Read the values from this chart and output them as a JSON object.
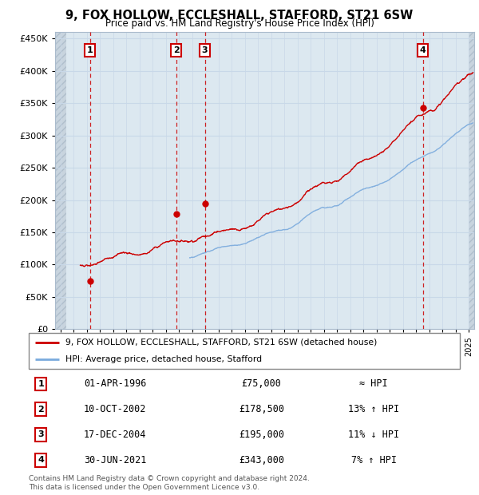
{
  "title1": "9, FOX HOLLOW, ECCLESHALL, STAFFORD, ST21 6SW",
  "title2": "Price paid vs. HM Land Registry's House Price Index (HPI)",
  "ylim": [
    0,
    460000
  ],
  "yticks": [
    0,
    50000,
    100000,
    150000,
    200000,
    250000,
    300000,
    350000,
    400000,
    450000
  ],
  "xlim_start": 1993.6,
  "xlim_end": 2025.4,
  "transactions": [
    {
      "num": 1,
      "year": 1996.25,
      "price": 75000
    },
    {
      "num": 2,
      "year": 2002.78,
      "price": 178500
    },
    {
      "num": 3,
      "year": 2004.96,
      "price": 195000
    },
    {
      "num": 4,
      "year": 2021.5,
      "price": 343000
    }
  ],
  "legend_line1": "9, FOX HOLLOW, ECCLESHALL, STAFFORD, ST21 6SW (detached house)",
  "legend_line2": "HPI: Average price, detached house, Stafford",
  "footnote1": "Contains HM Land Registry data © Crown copyright and database right 2024.",
  "footnote2": "This data is licensed under the Open Government Licence v3.0.",
  "hpi_color": "#7aaadd",
  "sale_color": "#cc0000",
  "grid_color": "#c8d8e8",
  "bg_color": "#dce8f0",
  "hatch_color": "#c8d4de",
  "table_rows": [
    {
      "num": "1",
      "date": "01-APR-1996",
      "price": "£75,000",
      "note": "≈ HPI"
    },
    {
      "num": "2",
      "date": "10-OCT-2002",
      "price": "£178,500",
      "note": "13% ↑ HPI"
    },
    {
      "num": "3",
      "date": "17-DEC-2004",
      "price": "£195,000",
      "note": "11% ↓ HPI"
    },
    {
      "num": "4",
      "date": "30-JUN-2021",
      "price": "£343,000",
      "note": "7% ↑ HPI"
    }
  ]
}
